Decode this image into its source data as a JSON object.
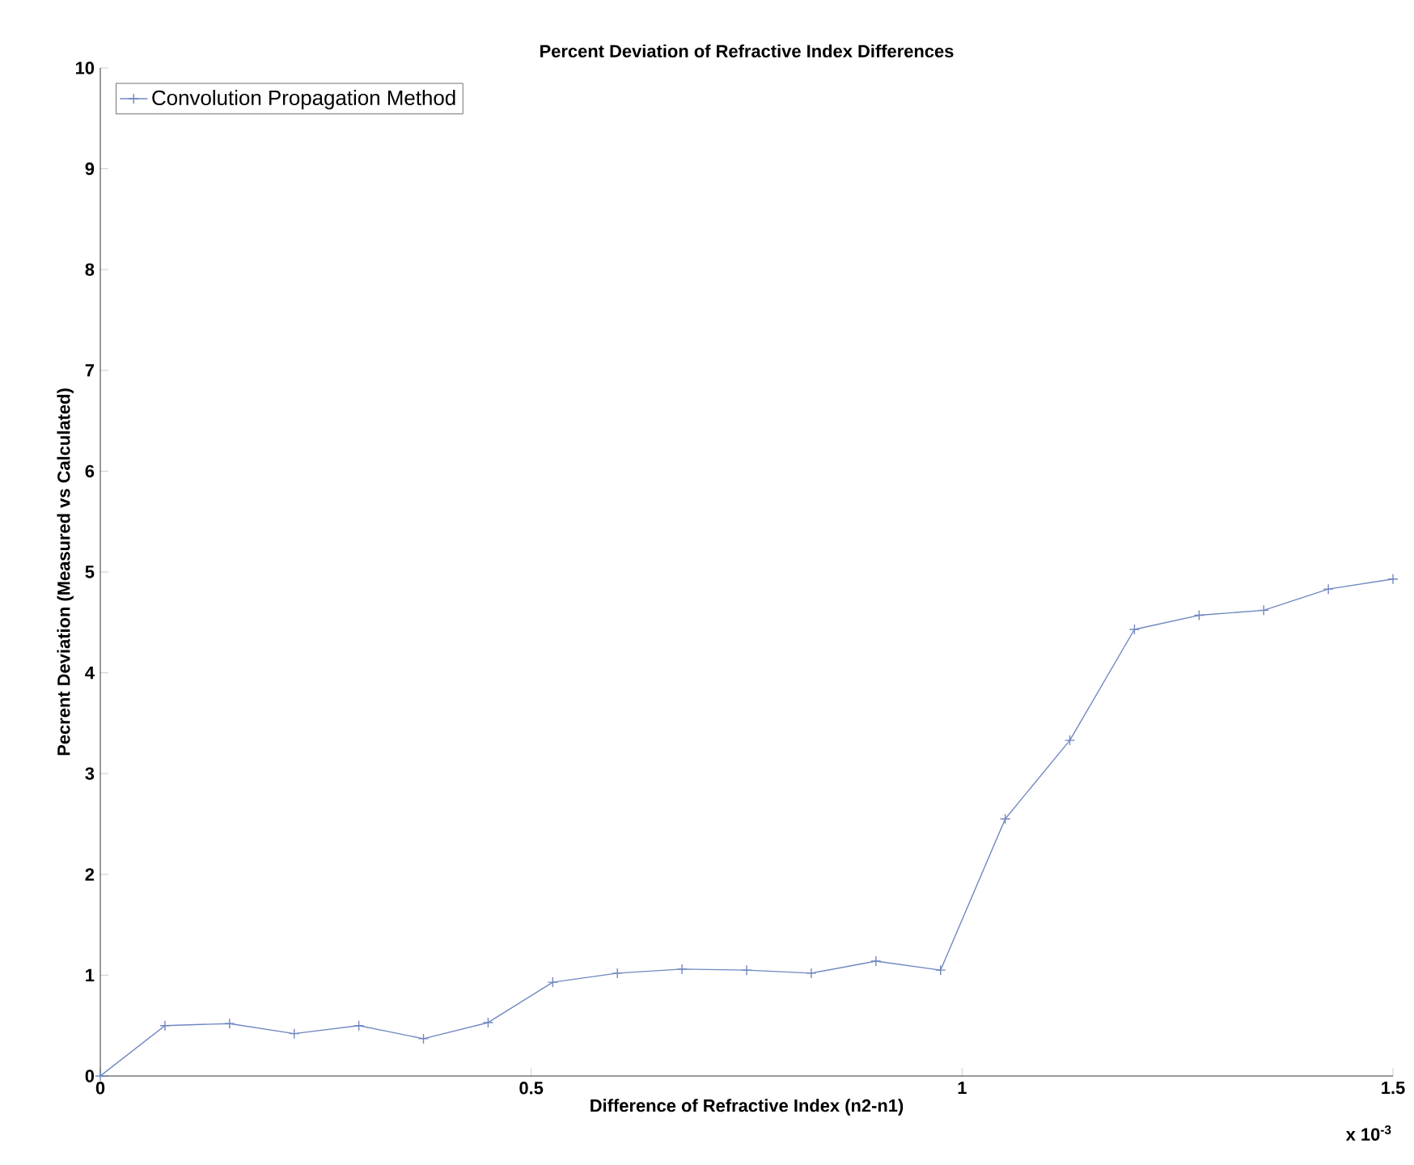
{
  "chart_data": {
    "type": "line",
    "title": "Percent Deviation of Refractive Index Differences",
    "xlabel": "Difference of Refractive Index (n2-n1)",
    "ylabel": "Pecrent Deviation (Measured vs Calculated)",
    "annotations": [
      "x 10$^{-3}$"
    ],
    "x": [
      0,
      0.075,
      0.15,
      0.225,
      0.3,
      0.375,
      0.45,
      0.525,
      0.6,
      0.675,
      0.75,
      0.825,
      0.9,
      0.975,
      1.05,
      1.125,
      1.2,
      1.275,
      1.35,
      1.425,
      1.5
    ],
    "series": [
      {
        "name": "Convolution Propagation Method",
        "color": "#7088c0",
        "values": [
          0,
          0.5,
          0.52,
          0.42,
          0.5,
          0.37,
          0.53,
          0.93,
          1.02,
          1.06,
          1.05,
          1.02,
          1.14,
          1.05,
          2.55,
          3.33,
          4.43,
          4.57,
          4.62,
          4.83,
          4.93
        ]
      }
    ],
    "xlim": [
      0,
      1.5
    ],
    "xticks": [
      0,
      0.5,
      1,
      1.5
    ],
    "ylim": [
      0,
      10
    ],
    "yticks": [
      0,
      1,
      2,
      3,
      4,
      5,
      6,
      7,
      8,
      9,
      10
    ],
    "legend": "top left",
    "marker": "cross",
    "line_style": "solid",
    "grid": false
  }
}
